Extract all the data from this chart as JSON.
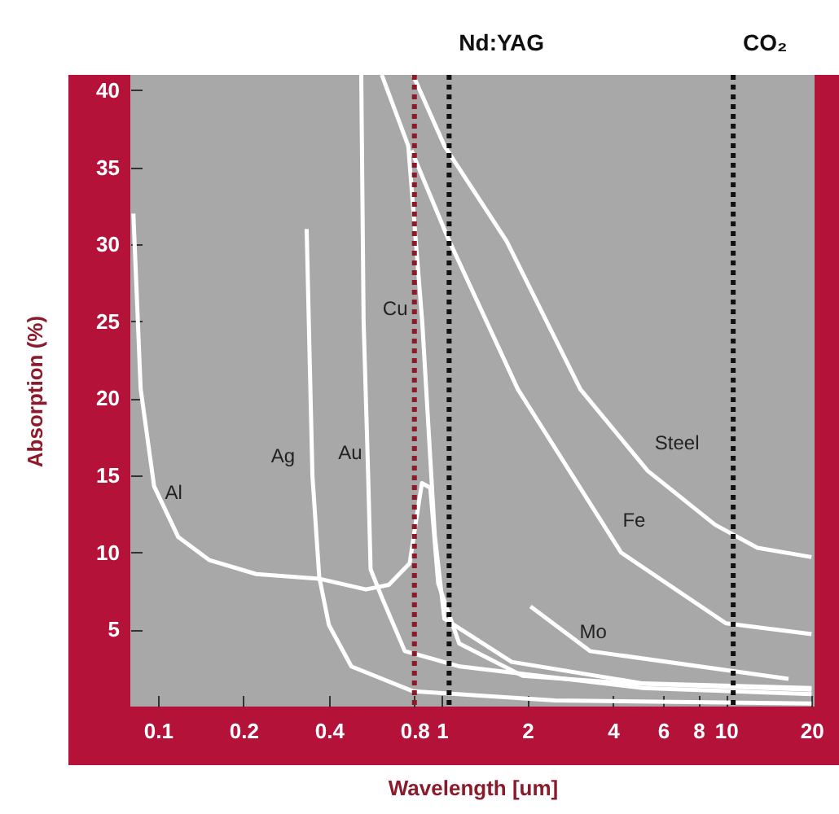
{
  "chart_data": {
    "type": "line",
    "xlabel": "Wavelength [um]",
    "ylabel": "Absorption (%)",
    "log": "x",
    "xlim": [
      0.08,
      20.5
    ],
    "xticks": [
      0.1,
      0.2,
      0.4,
      0.8,
      1,
      2,
      4,
      6,
      8,
      10,
      20
    ],
    "ylim": [
      0,
      41
    ],
    "yticks": [
      5,
      10,
      15,
      20,
      25,
      30,
      35,
      40
    ],
    "grid": false,
    "legend": false,
    "series": [
      {
        "name": "Al",
        "color": "#ffffff",
        "x": [
          0.082,
          0.087,
          0.097,
          0.118,
          0.152,
          0.222,
          0.369,
          0.54,
          0.65,
          0.77,
          0.81,
          0.85,
          0.91,
          0.97,
          1.15,
          1.92,
          4.6,
          20
        ],
        "values": [
          32,
          20.6,
          14.3,
          11,
          9.5,
          8.6,
          8.3,
          7.6,
          7.9,
          9.3,
          12,
          14.5,
          14.2,
          8,
          4.1,
          2.0,
          1.5,
          1.1
        ]
      },
      {
        "name": "Ag",
        "color": "#ffffff",
        "x": [
          0.334,
          0.35,
          0.37,
          0.4,
          0.48,
          0.79,
          2.5,
          20
        ],
        "values": [
          31,
          15,
          8.4,
          5.3,
          2.6,
          1.0,
          0.4,
          0.2
        ]
      },
      {
        "name": "Au",
        "color": "#ffffff",
        "x": [
          0.52,
          0.53,
          0.55,
          0.561,
          0.614,
          0.74,
          1.157,
          5.1,
          20
        ],
        "values": [
          41,
          25,
          15,
          8.9,
          7.1,
          3.6,
          2.6,
          1.2,
          0.8
        ]
      },
      {
        "name": "Cu",
        "color": "#ffffff",
        "x": [
          0.614,
          0.761,
          0.853,
          0.944,
          1.02,
          1.76,
          5.1,
          20
        ],
        "values": [
          41,
          36.4,
          24.9,
          11.1,
          5.7,
          2.9,
          1.5,
          1.2
        ]
      },
      {
        "name": "Fe",
        "color": "#ffffff",
        "x": [
          0.781,
          1.045,
          1.85,
          4.27,
          10,
          20
        ],
        "values": [
          36.1,
          30.5,
          20.6,
          10,
          5.4,
          4.7
        ]
      },
      {
        "name": "Steel",
        "color": "#ffffff",
        "x": [
          0.791,
          1.02,
          1.69,
          3.07,
          5.3,
          9.15,
          12.9,
          20
        ],
        "values": [
          41,
          36.4,
          30.2,
          20.6,
          15.3,
          11.8,
          10.3,
          9.7
        ]
      },
      {
        "name": "Mo",
        "color": "#ffffff",
        "x": [
          2.05,
          3.32,
          16.6
        ],
        "values": [
          6.5,
          3.6,
          1.8
        ]
      }
    ],
    "ref_lines": [
      {
        "axis": "x",
        "value": 0.8,
        "color": "#8b1a2b",
        "line_style": "dotted"
      },
      {
        "axis": "x",
        "value": 1.06,
        "label": "Nd:YAG",
        "color": "#111111",
        "line_style": "dotted"
      },
      {
        "axis": "x",
        "value": 10.6,
        "label": "CO₂",
        "color": "#111111",
        "line_style": "dotted"
      }
    ]
  }
}
